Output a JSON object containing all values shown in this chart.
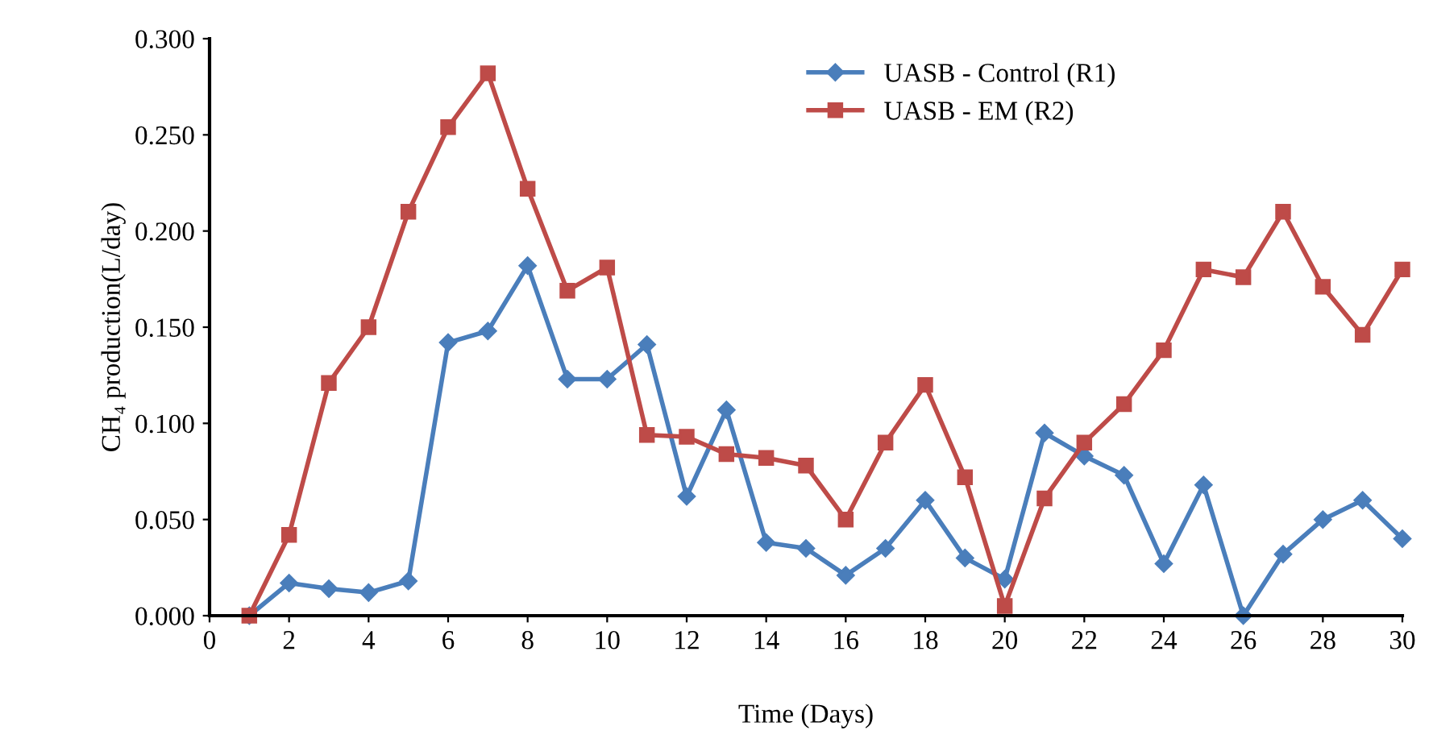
{
  "chart_data": {
    "type": "line",
    "xlabel": "Time (Days)",
    "ylabel": "CH₄ production(L/day)",
    "x": [
      1,
      2,
      3,
      4,
      5,
      6,
      7,
      8,
      9,
      10,
      11,
      12,
      13,
      14,
      15,
      16,
      17,
      18,
      19,
      20,
      21,
      22,
      23,
      24,
      25,
      26,
      27,
      28,
      29,
      30
    ],
    "series": [
      {
        "name": "UASB - Control (R1)",
        "color": "#4a7ebb",
        "marker": "diamond",
        "values": [
          0,
          0.017,
          0.014,
          0.012,
          0.018,
          0.142,
          0.148,
          0.182,
          0.123,
          0.123,
          0.141,
          0.062,
          0.107,
          0.038,
          0.035,
          0.021,
          0.035,
          0.06,
          0.03,
          0.019,
          0.095,
          0.083,
          0.073,
          0.027,
          0.068,
          0.0,
          0.032,
          0.05,
          0.06,
          0.04
        ]
      },
      {
        "name": "UASB - EM (R2)",
        "color": "#be4b48",
        "marker": "square",
        "values": [
          0,
          0.042,
          0.121,
          0.15,
          0.21,
          0.254,
          0.282,
          0.222,
          0.169,
          0.181,
          0.094,
          0.093,
          0.084,
          0.082,
          0.078,
          0.05,
          0.09,
          0.12,
          0.072,
          0.005,
          0.061,
          0.09,
          0.11,
          0.138,
          0.18,
          0.176,
          0.21,
          0.171,
          0.146,
          0.18
        ]
      }
    ],
    "xlim": [
      0,
      30
    ],
    "xticks": [
      0,
      2,
      4,
      6,
      8,
      10,
      12,
      14,
      16,
      18,
      20,
      22,
      24,
      26,
      28,
      30
    ],
    "ylim": [
      0,
      0.3
    ],
    "yticks": [
      {
        "value": 0,
        "label": "0.000"
      },
      {
        "value": 0.05,
        "label": "0.050"
      },
      {
        "value": 0.1,
        "label": "0.100"
      },
      {
        "value": 0.15,
        "label": "0.150"
      },
      {
        "value": 0.2,
        "label": "0.200"
      },
      {
        "value": 0.25,
        "label": "0.250"
      },
      {
        "value": 0.3,
        "label": "0.300"
      }
    ],
    "grid": false,
    "legend": "top right",
    "line_style": "solid"
  }
}
